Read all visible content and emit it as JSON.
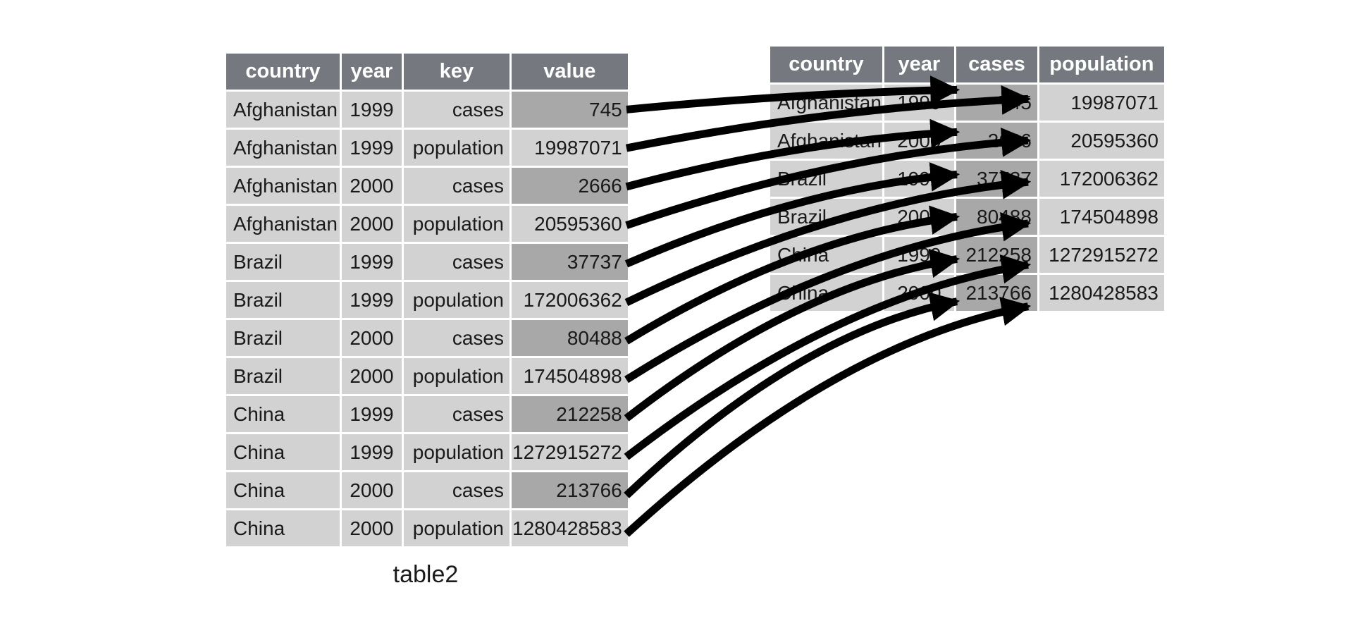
{
  "caption": "table2",
  "colors": {
    "header_bg": "#75797f",
    "header_text": "#ffffff",
    "cell_bg": "#d2d2d2",
    "highlight_bg": "#a8a8a8",
    "text": "#1a1a1a",
    "arrow": "#000000",
    "divider": "#ffffff"
  },
  "left_table": {
    "columns": [
      "country",
      "year",
      "key",
      "value"
    ],
    "rows": [
      {
        "country": "Afghanistan",
        "year": "1999",
        "key": "cases",
        "value": "745",
        "highlight": true
      },
      {
        "country": "Afghanistan",
        "year": "1999",
        "key": "population",
        "value": "19987071",
        "highlight": false
      },
      {
        "country": "Afghanistan",
        "year": "2000",
        "key": "cases",
        "value": "2666",
        "highlight": true
      },
      {
        "country": "Afghanistan",
        "year": "2000",
        "key": "population",
        "value": "20595360",
        "highlight": false
      },
      {
        "country": "Brazil",
        "year": "1999",
        "key": "cases",
        "value": "37737",
        "highlight": true
      },
      {
        "country": "Brazil",
        "year": "1999",
        "key": "population",
        "value": "172006362",
        "highlight": false
      },
      {
        "country": "Brazil",
        "year": "2000",
        "key": "cases",
        "value": "80488",
        "highlight": true
      },
      {
        "country": "Brazil",
        "year": "2000",
        "key": "population",
        "value": "174504898",
        "highlight": false
      },
      {
        "country": "China",
        "year": "1999",
        "key": "cases",
        "value": "212258",
        "highlight": true
      },
      {
        "country": "China",
        "year": "1999",
        "key": "population",
        "value": "1272915272",
        "highlight": false
      },
      {
        "country": "China",
        "year": "2000",
        "key": "cases",
        "value": "213766",
        "highlight": true
      },
      {
        "country": "China",
        "year": "2000",
        "key": "population",
        "value": "1280428583",
        "highlight": false
      }
    ]
  },
  "right_table": {
    "columns": [
      "country",
      "year",
      "cases",
      "population"
    ],
    "highlight_column": "cases",
    "rows": [
      {
        "country": "Afghanistan",
        "year": "1999",
        "cases": "745",
        "population": "19987071"
      },
      {
        "country": "Afghanistan",
        "year": "2000",
        "cases": "2666",
        "population": "20595360"
      },
      {
        "country": "Brazil",
        "year": "1999",
        "cases": "37737",
        "population": "172006362"
      },
      {
        "country": "Brazil",
        "year": "2000",
        "cases": "80488",
        "population": "174504898"
      },
      {
        "country": "China",
        "year": "1999",
        "cases": "212258",
        "population": "1272915272"
      },
      {
        "country": "China",
        "year": "2000",
        "cases": "213766",
        "population": "1280428583"
      }
    ]
  },
  "arrows": [
    {
      "from": 0,
      "to": 0,
      "col": "cases"
    },
    {
      "from": 1,
      "to": 0,
      "col": "population"
    },
    {
      "from": 2,
      "to": 1,
      "col": "cases"
    },
    {
      "from": 3,
      "to": 1,
      "col": "population"
    },
    {
      "from": 4,
      "to": 2,
      "col": "cases"
    },
    {
      "from": 5,
      "to": 2,
      "col": "population"
    },
    {
      "from": 6,
      "to": 3,
      "col": "cases"
    },
    {
      "from": 7,
      "to": 3,
      "col": "population"
    },
    {
      "from": 8,
      "to": 4,
      "col": "cases"
    },
    {
      "from": 9,
      "to": 4,
      "col": "population"
    },
    {
      "from": 10,
      "to": 5,
      "col": "cases"
    },
    {
      "from": 11,
      "to": 5,
      "col": "population"
    }
  ]
}
